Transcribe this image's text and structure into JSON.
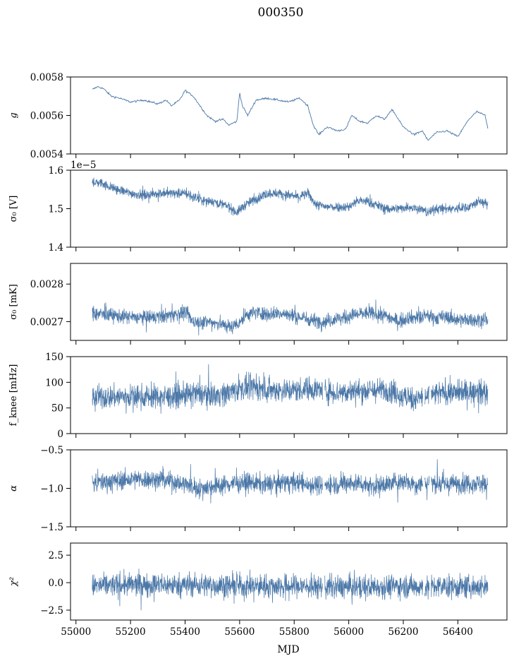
{
  "figure": {
    "title": "000350",
    "xlabel": "MJD",
    "series_color": "#4c78a8"
  },
  "chart_data": [
    {
      "type": "line",
      "title": "",
      "ylabel": "g",
      "ylabel_italic": true,
      "xlim": [
        54980,
        56580
      ],
      "ylim": [
        0.0054,
        0.0058
      ],
      "yticks": [
        0.0054,
        0.0056,
        0.0058
      ],
      "ytick_labels": [
        "0.0054",
        "0.0056",
        "0.0058"
      ],
      "offset_text": "",
      "x_range": [
        55060,
        56510
      ],
      "series": [
        {
          "style": "thin",
          "x": [
            55060,
            55080,
            55100,
            55130,
            55160,
            55200,
            55250,
            55300,
            55330,
            55350,
            55380,
            55400,
            55430,
            55450,
            55480,
            55510,
            55540,
            55560,
            55590,
            55600,
            55610,
            55630,
            55660,
            55700,
            55740,
            55780,
            55820,
            55850,
            55870,
            55890,
            55920,
            55960,
            55990,
            56010,
            56040,
            56070,
            56100,
            56130,
            56160,
            56200,
            56240,
            56270,
            56290,
            56320,
            56360,
            56400,
            56440,
            56470,
            56500,
            56510
          ],
          "y": [
            0.005735,
            0.00575,
            0.00574,
            0.0057,
            0.00569,
            0.00567,
            0.00568,
            0.00566,
            0.00568,
            0.00565,
            0.00568,
            0.00573,
            0.0057,
            0.00566,
            0.0056,
            0.00557,
            0.00558,
            0.00555,
            0.00557,
            0.00572,
            0.00565,
            0.0056,
            0.00568,
            0.00569,
            0.00568,
            0.00567,
            0.00569,
            0.00565,
            0.00555,
            0.0055,
            0.00554,
            0.00552,
            0.00553,
            0.0056,
            0.00557,
            0.00556,
            0.0056,
            0.00558,
            0.00563,
            0.00554,
            0.0055,
            0.00552,
            0.00547,
            0.00551,
            0.00552,
            0.00549,
            0.00558,
            0.00562,
            0.0056,
            0.00553
          ]
        }
      ]
    },
    {
      "type": "line",
      "title": "",
      "ylabel": "σ₀ [V]",
      "ylabel_italic": false,
      "xlim": [
        54980,
        56580
      ],
      "ylim": [
        1.4,
        1.6
      ],
      "yticks": [
        1.4,
        1.5,
        1.6
      ],
      "ytick_labels": [
        "1.4",
        "1.5",
        "1.6"
      ],
      "offset_text": "1e−5",
      "x_range": [
        55060,
        56510
      ],
      "series": [
        {
          "style": "band",
          "noise": 0.012,
          "x": [
            55060,
            55100,
            55150,
            55200,
            55250,
            55300,
            55350,
            55400,
            55430,
            55470,
            55500,
            55540,
            55560,
            55590,
            55620,
            55660,
            55700,
            55740,
            55780,
            55820,
            55850,
            55880,
            55920,
            55960,
            56000,
            56030,
            56060,
            56100,
            56140,
            56180,
            56220,
            56260,
            56290,
            56320,
            56360,
            56400,
            56440,
            56480,
            56510
          ],
          "y": [
            1.57,
            1.565,
            1.55,
            1.54,
            1.535,
            1.54,
            1.54,
            1.54,
            1.53,
            1.52,
            1.52,
            1.51,
            1.505,
            1.49,
            1.51,
            1.525,
            1.54,
            1.54,
            1.535,
            1.53,
            1.54,
            1.51,
            1.505,
            1.505,
            1.505,
            1.52,
            1.52,
            1.51,
            1.5,
            1.5,
            1.505,
            1.5,
            1.49,
            1.5,
            1.5,
            1.5,
            1.505,
            1.52,
            1.51
          ]
        }
      ]
    },
    {
      "type": "line",
      "title": "",
      "ylabel": "σ₀ [mK]",
      "ylabel_italic": false,
      "xlim": [
        54980,
        56580
      ],
      "ylim": [
        0.00265,
        0.002855
      ],
      "yticks": [
        0.0027,
        0.0028
      ],
      "ytick_labels": [
        "0.0027",
        "0.0028"
      ],
      "offset_text": "",
      "x_range": [
        55060,
        56510
      ],
      "series": [
        {
          "style": "band",
          "noise": 1.8e-05,
          "x": [
            55060,
            55100,
            55150,
            55200,
            55250,
            55300,
            55350,
            55400,
            55430,
            55460,
            55500,
            55540,
            55570,
            55600,
            55630,
            55660,
            55700,
            55740,
            55780,
            55820,
            55860,
            55900,
            55940,
            55980,
            56020,
            56060,
            56100,
            56140,
            56180,
            56220,
            56260,
            56290,
            56320,
            56360,
            56400,
            56440,
            56480,
            56510
          ],
          "y": [
            0.002722,
            0.00272,
            0.002715,
            0.002712,
            0.00271,
            0.002712,
            0.002718,
            0.002725,
            0.0027,
            0.0027,
            0.002698,
            0.002692,
            0.002685,
            0.0027,
            0.00272,
            0.002725,
            0.00272,
            0.002722,
            0.002718,
            0.002712,
            0.002705,
            0.0027,
            0.002705,
            0.00271,
            0.002718,
            0.002722,
            0.00272,
            0.002715,
            0.0027,
            0.002712,
            0.00271,
            0.002715,
            0.00271,
            0.002712,
            0.002705,
            0.002705,
            0.002705,
            0.002705
          ]
        }
      ]
    },
    {
      "type": "line",
      "title": "",
      "ylabel": "f_knee [mHz]",
      "ylabel_italic": false,
      "xlim": [
        54980,
        56580
      ],
      "ylim": [
        0,
        150
      ],
      "yticks": [
        0,
        50,
        100,
        150
      ],
      "ytick_labels": [
        "0",
        "50",
        "100",
        "150"
      ],
      "offset_text": "",
      "x_range": [
        55060,
        56510
      ],
      "series": [
        {
          "style": "band",
          "noise": 22,
          "gaps": [
            [
              55905,
              55912
            ],
            [
              56272,
              56278
            ],
            [
              56295,
              56302
            ]
          ],
          "x": [
            55060,
            55150,
            55250,
            55350,
            55400,
            55450,
            55500,
            55550,
            55600,
            55650,
            55700,
            55750,
            55800,
            55850,
            55900,
            55950,
            56000,
            56050,
            56100,
            56150,
            56200,
            56250,
            56300,
            56350,
            56400,
            56450,
            56510
          ],
          "y": [
            70,
            72,
            72,
            72,
            75,
            78,
            75,
            78,
            88,
            90,
            86,
            85,
            84,
            88,
            85,
            80,
            82,
            83,
            84,
            86,
            70,
            68,
            75,
            80,
            80,
            82,
            80
          ]
        }
      ]
    },
    {
      "type": "line",
      "title": "",
      "ylabel": "α",
      "ylabel_italic": true,
      "xlim": [
        54980,
        56580
      ],
      "ylim": [
        -1.5,
        -0.5
      ],
      "yticks": [
        -1.5,
        -1.0,
        -0.5
      ],
      "ytick_labels": [
        "−1.5",
        "−1.0",
        "−0.5"
      ],
      "offset_text": "",
      "x_range": [
        55060,
        56510
      ],
      "series": [
        {
          "style": "band",
          "noise": 0.12,
          "gaps": [
            [
              55905,
              55912
            ],
            [
              56272,
              56278
            ],
            [
              56295,
              56302
            ]
          ],
          "x": [
            55060,
            55150,
            55250,
            55350,
            55400,
            55450,
            55500,
            55550,
            55600,
            55650,
            55700,
            55750,
            55800,
            55850,
            55900,
            55950,
            56000,
            56050,
            56100,
            56150,
            56200,
            56250,
            56300,
            56350,
            56400,
            56450,
            56510
          ],
          "y": [
            -0.93,
            -0.9,
            -0.88,
            -0.9,
            -0.95,
            -1.0,
            -0.97,
            -0.95,
            -0.92,
            -0.93,
            -0.95,
            -0.93,
            -0.92,
            -0.95,
            -0.96,
            -0.95,
            -0.93,
            -0.94,
            -0.97,
            -0.94,
            -0.9,
            -0.95,
            -0.92,
            -0.95,
            -0.94,
            -0.93,
            -0.95
          ]
        }
      ]
    },
    {
      "type": "line",
      "title": "",
      "ylabel": "χ²",
      "ylabel_italic": true,
      "xlim": [
        54980,
        56580
      ],
      "ylim": [
        -3.4,
        3.6
      ],
      "yticks": [
        -2.5,
        0.0,
        2.5
      ],
      "ytick_labels": [
        "−2.5",
        "0.0",
        "2.5"
      ],
      "offset_text": "",
      "x_range": [
        55060,
        56510
      ],
      "series": [
        {
          "style": "band",
          "noise": 1.0,
          "gaps": [
            [
              55905,
              55912
            ],
            [
              56272,
              56278
            ],
            [
              56295,
              56302
            ]
          ],
          "x": [
            55060,
            55200,
            55400,
            55600,
            55800,
            55900,
            56000,
            56200,
            56300,
            56400,
            56510
          ],
          "y": [
            -0.3,
            -0.2,
            -0.2,
            -0.3,
            -0.3,
            -0.4,
            -0.4,
            -0.3,
            -0.4,
            -0.4,
            -0.4
          ]
        }
      ]
    }
  ],
  "xaxis": {
    "ticks": [
      55000,
      55200,
      55400,
      55600,
      55800,
      56000,
      56200,
      56400
    ],
    "tick_labels": [
      "55000",
      "55200",
      "55400",
      "55600",
      "55800",
      "56000",
      "56200",
      "56400"
    ]
  }
}
